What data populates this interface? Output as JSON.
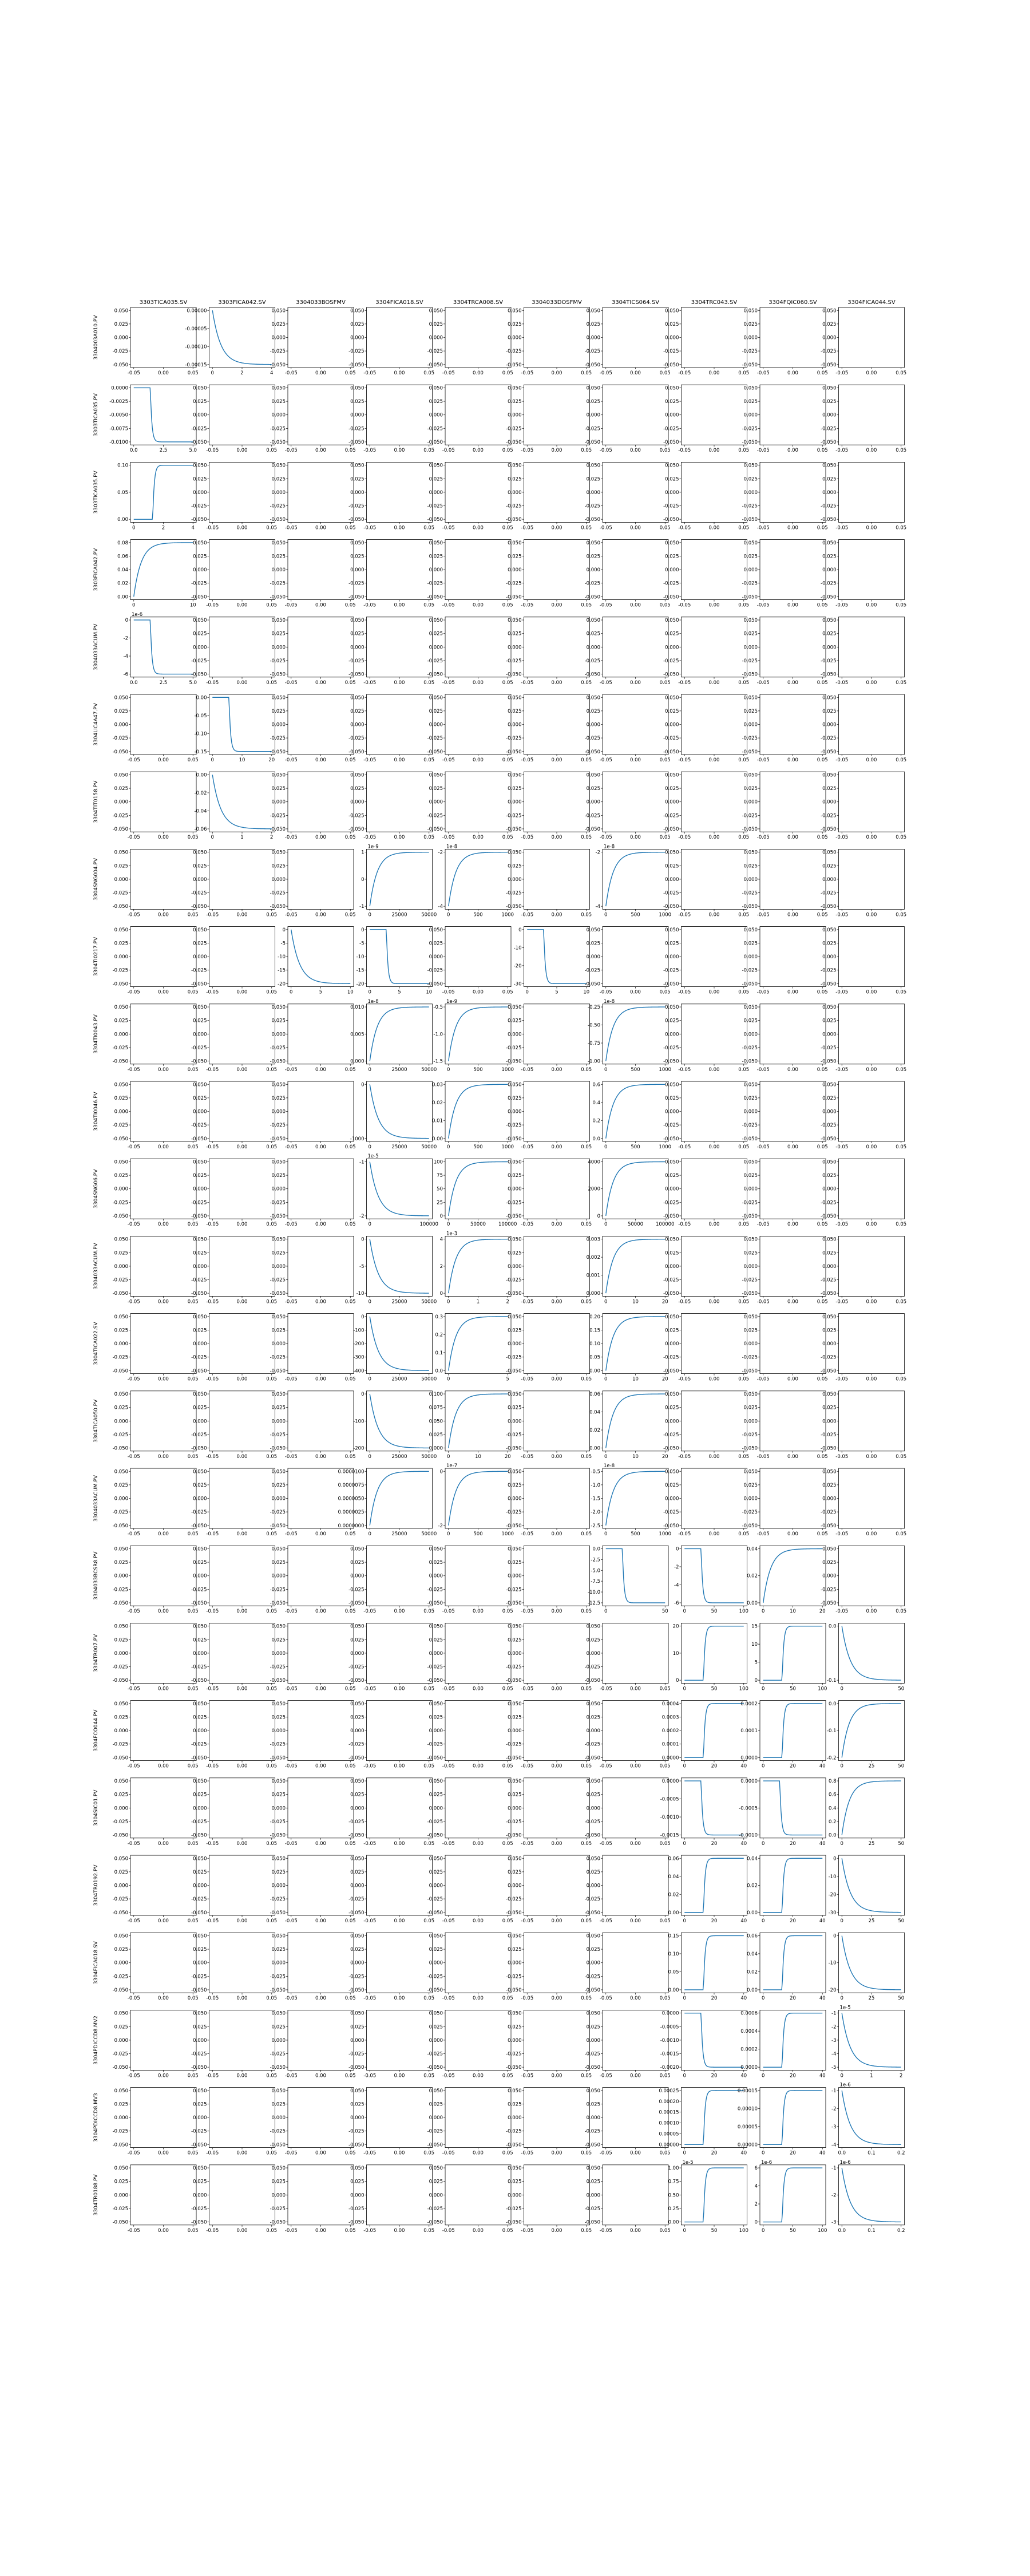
{
  "chart_data": {
    "type": "line",
    "layout": "grid",
    "grid": false,
    "legend": "none",
    "colors": {
      "line": "#1f77b4",
      "axes": "#000000",
      "background": "#ffffff"
    },
    "col_labels": [
      "3303TICA035.SV",
      "3303FICA042.SV",
      "3304033BOSFMV",
      "3304FICA018.SV",
      "3304TRCA008.SV",
      "3304033DOSFMV",
      "3304TICS064.SV",
      "3304TRC043.SV",
      "3304FQIC060.SV",
      "3304FICA044.SV"
    ],
    "row_labels": [
      "3304003A010.PV",
      "3303TICA035.PV",
      "3303TICA035.PV",
      "3303FICA042.PV",
      "3304033ACUM.PV",
      "3304LIC4A47.PV",
      "3304TIT0158.PV",
      "3304SNG004.PV",
      "3304TI0217.PV",
      "3304TI0043.PV",
      "3304TI0046.PV",
      "3304SNG06.PV",
      "3304033ACUM.PV",
      "3304TICA022.SV",
      "3304TICA050.PV",
      "3304033ACUM.PV",
      "3304033BCSR8.PV",
      "3304TR007.PV",
      "3304FCO044.PV",
      "3304SIC01.PV",
      "3304TR0192.PV",
      "3304FICA018.SV",
      "3304PDICCD8.MV2",
      "3304PDICCD8.MV3",
      "3304TR0188.PV"
    ],
    "default_subplot": {
      "xticks": [
        "-0.05",
        "0.00",
        "0.05"
      ],
      "yticks": [
        "0.050",
        "0.025",
        "0.000",
        "-0.025",
        "-0.050"
      ]
    },
    "subplots": [
      {
        "row": 0,
        "col": 0,
        "shape": "flat",
        "xticks": [
          "-0.05",
          "0.00",
          "0.05"
        ],
        "yticks": [
          "0.050",
          "0.025",
          "0.000",
          "-0.025",
          "-0.050"
        ]
      },
      {
        "row": 0,
        "col": 1,
        "shape": "decay_down",
        "xticks": [
          "0",
          "2",
          "4"
        ],
        "yticks": [
          "0.00000",
          "-0.00005",
          "-0.00010",
          "-0.00015"
        ]
      },
      {
        "row": 1,
        "col": 0,
        "shape": "step_down",
        "xticks": [
          "0.0",
          "2.5",
          "5.0"
        ],
        "yticks": [
          "0.0000",
          "-0.0025",
          "-0.0050",
          "-0.0075",
          "-0.0100"
        ]
      },
      {
        "row": 2,
        "col": 0,
        "shape": "step_up",
        "xticks": [
          "0",
          "2",
          "4"
        ],
        "yticks": [
          "0.10",
          "0.05",
          "0.00"
        ]
      },
      {
        "row": 3,
        "col": 0,
        "shape": "rise",
        "xticks": [
          "0",
          "10"
        ],
        "yticks": [
          "0.08",
          "0.06",
          "0.04",
          "0.02",
          "0.00"
        ]
      },
      {
        "row": 4,
        "col": 0,
        "shape": "step_down",
        "multiplier": "1e-6",
        "xticks": [
          "0.0",
          "2.5",
          "5.0"
        ],
        "yticks": [
          "0",
          "-2",
          "-4",
          "-6"
        ]
      },
      {
        "row": 5,
        "col": 1,
        "shape": "step_down",
        "xticks": [
          "0",
          "10",
          "20"
        ],
        "yticks": [
          "0.00",
          "-0.05",
          "-0.10",
          "-0.15"
        ]
      },
      {
        "row": 6,
        "col": 1,
        "shape": "decay_down",
        "xticks": [
          "0",
          "1",
          "2"
        ],
        "yticks": [
          "0.00",
          "-0.02",
          "-0.04",
          "-0.06"
        ]
      },
      {
        "row": 7,
        "col": 3,
        "shape": "rise",
        "multiplier": "1e-9",
        "xticks": [
          "0",
          "25000",
          "50000"
        ],
        "yticks": [
          "1",
          "0",
          "-1"
        ]
      },
      {
        "row": 7,
        "col": 4,
        "shape": "rise",
        "multiplier": "1e-8",
        "xticks": [
          "0",
          "500",
          "1000"
        ],
        "yticks": [
          "-2",
          "-4"
        ]
      },
      {
        "row": 7,
        "col": 6,
        "shape": "rise",
        "multiplier": "1e-8",
        "xticks": [
          "0",
          "500",
          "1000"
        ],
        "yticks": [
          "-2",
          "-4"
        ]
      },
      {
        "row": 8,
        "col": 2,
        "shape": "decay_down",
        "xticks": [
          "0",
          "5",
          "10"
        ],
        "yticks": [
          "0",
          "-5",
          "-10",
          "-15",
          "-20"
        ]
      },
      {
        "row": 8,
        "col": 3,
        "shape": "step_down",
        "xticks": [
          "0",
          "5",
          "10"
        ],
        "yticks": [
          "0",
          "-5",
          "-10",
          "-15",
          "-20"
        ]
      },
      {
        "row": 8,
        "col": 5,
        "shape": "step_down",
        "xticks": [
          "0",
          "5",
          "10"
        ],
        "yticks": [
          "0",
          "-10",
          "-20",
          "-30"
        ]
      },
      {
        "row": 9,
        "col": 3,
        "shape": "rise",
        "multiplier": "1e-8",
        "xticks": [
          "0",
          "25000",
          "50000"
        ],
        "yticks": [
          "0.010",
          "0.005",
          "0.000"
        ]
      },
      {
        "row": 9,
        "col": 4,
        "shape": "rise",
        "multiplier": "1e-9",
        "xticks": [
          "0",
          "500",
          "1000"
        ],
        "yticks": [
          "-0.5",
          "-1.0",
          "-1.5"
        ]
      },
      {
        "row": 9,
        "col": 6,
        "shape": "rise",
        "multiplier": "1e-8",
        "xticks": [
          "0",
          "500",
          "1000"
        ],
        "yticks": [
          "-0.25",
          "-0.50",
          "-0.75",
          "-1.00"
        ]
      },
      {
        "row": 10,
        "col": 3,
        "shape": "decay_down",
        "xticks": [
          "0",
          "25000",
          "50000"
        ],
        "yticks": [
          "0",
          "-1000"
        ]
      },
      {
        "row": 10,
        "col": 4,
        "shape": "rise",
        "xticks": [
          "0",
          "500",
          "1000"
        ],
        "yticks": [
          "0.03",
          "0.02",
          "0.01",
          "0.00"
        ]
      },
      {
        "row": 10,
        "col": 6,
        "shape": "rise",
        "xticks": [
          "0",
          "500",
          "1000"
        ],
        "yticks": [
          "0.6",
          "0.4",
          "0.2",
          "0.0"
        ]
      },
      {
        "row": 11,
        "col": 3,
        "shape": "decay_down",
        "multiplier": "1e-5",
        "xticks": [
          "0",
          "100000"
        ],
        "yticks": [
          "-1",
          "-2"
        ]
      },
      {
        "row": 11,
        "col": 4,
        "shape": "rise",
        "xticks": [
          "0",
          "50000",
          "100000"
        ],
        "yticks": [
          "100",
          "75",
          "50",
          "25",
          "0"
        ]
      },
      {
        "row": 11,
        "col": 6,
        "shape": "rise",
        "xticks": [
          "0",
          "50000",
          "100000"
        ],
        "yticks": [
          "4000",
          "2000",
          "0"
        ]
      },
      {
        "row": 12,
        "col": 3,
        "shape": "decay_down",
        "xticks": [
          "0",
          "25000",
          "50000"
        ],
        "yticks": [
          "0",
          "-5",
          "-10"
        ]
      },
      {
        "row": 12,
        "col": 4,
        "shape": "rise",
        "multiplier": "1e-3",
        "xticks": [
          "0",
          "1",
          "2"
        ],
        "yticks": [
          "4",
          "2",
          "0"
        ]
      },
      {
        "row": 12,
        "col": 6,
        "shape": "rise",
        "xticks": [
          "0",
          "10",
          "20"
        ],
        "yticks": [
          "0.003",
          "0.002",
          "0.001",
          "0.000"
        ]
      },
      {
        "row": 13,
        "col": 3,
        "shape": "decay_down",
        "xticks": [
          "0",
          "25000",
          "50000"
        ],
        "yticks": [
          "0",
          "-100",
          "-200",
          "-300",
          "-400"
        ]
      },
      {
        "row": 13,
        "col": 4,
        "shape": "rise",
        "xticks": [
          "0",
          "5"
        ],
        "yticks": [
          "0.3",
          "0.2",
          "0.1",
          "0.0"
        ]
      },
      {
        "row": 13,
        "col": 6,
        "shape": "rise",
        "xticks": [
          "0",
          "10",
          "20"
        ],
        "yticks": [
          "0.20",
          "0.15",
          "0.10",
          "0.05",
          "0.00"
        ]
      },
      {
        "row": 14,
        "col": 3,
        "shape": "decay_down",
        "xticks": [
          "0",
          "25000",
          "50000"
        ],
        "yticks": [
          "0",
          "-100",
          "-200"
        ]
      },
      {
        "row": 14,
        "col": 4,
        "shape": "rise",
        "xticks": [
          "0",
          "10",
          "20"
        ],
        "yticks": [
          "0.100",
          "0.075",
          "0.050",
          "0.025",
          "0.000"
        ]
      },
      {
        "row": 14,
        "col": 6,
        "shape": "rise",
        "xticks": [
          "0",
          "10",
          "20"
        ],
        "yticks": [
          "0.06",
          "0.04",
          "0.02",
          "0.00"
        ]
      },
      {
        "row": 15,
        "col": 3,
        "shape": "rise",
        "xticks": [
          "0",
          "25000",
          "50000"
        ],
        "yticks": [
          "0.0000100",
          "0.0000075",
          "0.0000050",
          "0.0000025",
          "0.0000000"
        ]
      },
      {
        "row": 15,
        "col": 4,
        "shape": "rise",
        "multiplier": "1e-7",
        "xticks": [
          "0",
          "500",
          "1000"
        ],
        "yticks": [
          "0",
          "-2"
        ]
      },
      {
        "row": 15,
        "col": 6,
        "shape": "rise",
        "multiplier": "1e-8",
        "xticks": [
          "0",
          "500",
          "1000"
        ],
        "yticks": [
          "-0.5",
          "-1.0",
          "-1.5",
          "-2.0",
          "-2.5"
        ]
      },
      {
        "row": 16,
        "col": 6,
        "shape": "step_down",
        "xticks": [
          "0",
          "50"
        ],
        "yticks": [
          "0.0",
          "-2.5",
          "-5.0",
          "-7.5",
          "-10.0",
          "-12.5"
        ]
      },
      {
        "row": 16,
        "col": 7,
        "shape": "step_down",
        "xticks": [
          "0",
          "50",
          "100"
        ],
        "yticks": [
          "0",
          "-2",
          "-4",
          "-6"
        ]
      },
      {
        "row": 16,
        "col": 8,
        "shape": "rise",
        "xticks": [
          "0",
          "10",
          "20"
        ],
        "yticks": [
          "0.04",
          "0.02",
          "0.00"
        ]
      },
      {
        "row": 17,
        "col": 7,
        "shape": "step_up",
        "xticks": [
          "0",
          "50",
          "100"
        ],
        "yticks": [
          "20",
          "10",
          "0"
        ]
      },
      {
        "row": 17,
        "col": 8,
        "shape": "step_up",
        "xticks": [
          "0",
          "50",
          "100"
        ],
        "yticks": [
          "15",
          "10",
          "5",
          "0"
        ]
      },
      {
        "row": 17,
        "col": 9,
        "shape": "decay_down",
        "xticks": [
          "0",
          "50"
        ],
        "yticks": [
          "0.0",
          "-0.1"
        ]
      },
      {
        "row": 18,
        "col": 7,
        "shape": "step_up",
        "xticks": [
          "0",
          "20",
          "40"
        ],
        "yticks": [
          "0.0004",
          "0.0003",
          "0.0002",
          "0.0001",
          "0.0000"
        ]
      },
      {
        "row": 18,
        "col": 8,
        "shape": "step_up",
        "xticks": [
          "0",
          "20",
          "40"
        ],
        "yticks": [
          "0.0002",
          "0.0001",
          "0.0000"
        ]
      },
      {
        "row": 18,
        "col": 9,
        "shape": "rise",
        "xticks": [
          "0",
          "25",
          "50"
        ],
        "yticks": [
          "0.0",
          "-0.1",
          "-0.2"
        ]
      },
      {
        "row": 19,
        "col": 7,
        "shape": "step_down",
        "xticks": [
          "0",
          "20",
          "40"
        ],
        "yticks": [
          "0.0000",
          "-0.0005",
          "-0.0010",
          "-0.0015"
        ]
      },
      {
        "row": 19,
        "col": 8,
        "shape": "step_down",
        "xticks": [
          "0",
          "20",
          "40"
        ],
        "yticks": [
          "0.0000",
          "-0.0005",
          "-0.0010"
        ]
      },
      {
        "row": 19,
        "col": 9,
        "shape": "rise",
        "xticks": [
          "0",
          "25",
          "50"
        ],
        "yticks": [
          "0.8",
          "0.6",
          "0.4",
          "0.2",
          "0.0"
        ]
      },
      {
        "row": 20,
        "col": 7,
        "shape": "step_up",
        "xticks": [
          "0",
          "20",
          "40"
        ],
        "yticks": [
          "0.06",
          "0.04",
          "0.02",
          "0.00"
        ]
      },
      {
        "row": 20,
        "col": 8,
        "shape": "step_up",
        "xticks": [
          "0",
          "20",
          "40"
        ],
        "yticks": [
          "0.04",
          "0.02",
          "0.00"
        ]
      },
      {
        "row": 20,
        "col": 9,
        "shape": "decay_down",
        "xticks": [
          "0",
          "25",
          "50"
        ],
        "yticks": [
          "0",
          "-10",
          "-20",
          "-30"
        ]
      },
      {
        "row": 21,
        "col": 7,
        "shape": "step_up",
        "xticks": [
          "0",
          "20",
          "40"
        ],
        "yticks": [
          "0.15",
          "0.10",
          "0.05",
          "0.00"
        ]
      },
      {
        "row": 21,
        "col": 8,
        "shape": "step_up",
        "xticks": [
          "0",
          "20",
          "40"
        ],
        "yticks": [
          "0.06",
          "0.04",
          "0.02",
          "0.00"
        ]
      },
      {
        "row": 21,
        "col": 9,
        "shape": "decay_down",
        "xticks": [
          "0",
          "25",
          "50"
        ],
        "yticks": [
          "0",
          "-10",
          "-20"
        ]
      },
      {
        "row": 22,
        "col": 7,
        "shape": "step_down",
        "xticks": [
          "0",
          "20",
          "40"
        ],
        "yticks": [
          "0.0000",
          "-0.0005",
          "-0.0010",
          "-0.0015",
          "-0.0020"
        ]
      },
      {
        "row": 22,
        "col": 8,
        "shape": "step_up",
        "xticks": [
          "0",
          "20",
          "40"
        ],
        "yticks": [
          "0.0006",
          "0.0004",
          "0.0002",
          "0.0000"
        ]
      },
      {
        "row": 22,
        "col": 9,
        "shape": "decay_down",
        "multiplier": "1e-5",
        "xticks": [
          "0",
          "1",
          "2"
        ],
        "yticks": [
          "-1",
          "-2",
          "-3",
          "-4",
          "-5"
        ]
      },
      {
        "row": 23,
        "col": 7,
        "shape": "step_up",
        "xticks": [
          "0",
          "20",
          "40"
        ],
        "yticks": [
          "0.00025",
          "0.00020",
          "0.00015",
          "0.00010",
          "0.00005",
          "0.00000"
        ]
      },
      {
        "row": 23,
        "col": 8,
        "shape": "step_up",
        "xticks": [
          "0",
          "20",
          "40"
        ],
        "yticks": [
          "0.00015",
          "0.00010",
          "0.00005",
          "0.00000"
        ]
      },
      {
        "row": 23,
        "col": 9,
        "shape": "decay_down",
        "multiplier": "1e-6",
        "xticks": [
          "0.0",
          "0.1",
          "0.2"
        ],
        "yticks": [
          "-1",
          "-2",
          "-3",
          "-4"
        ]
      },
      {
        "row": 24,
        "col": 7,
        "shape": "step_up",
        "multiplier": "1e-5",
        "xticks": [
          "0",
          "50",
          "100"
        ],
        "yticks": [
          "1.00",
          "0.75",
          "0.50",
          "0.25",
          "0.00"
        ]
      },
      {
        "row": 24,
        "col": 8,
        "shape": "step_up",
        "multiplier": "1e-6",
        "xticks": [
          "0",
          "50",
          "100"
        ],
        "yticks": [
          "6",
          "4",
          "2",
          "0"
        ]
      },
      {
        "row": 24,
        "col": 9,
        "shape": "decay_down",
        "multiplier": "1e-6",
        "xticks": [
          "0.0",
          "0.1",
          "0.2"
        ],
        "yticks": [
          "-1",
          "-2",
          "-3"
        ]
      }
    ]
  }
}
